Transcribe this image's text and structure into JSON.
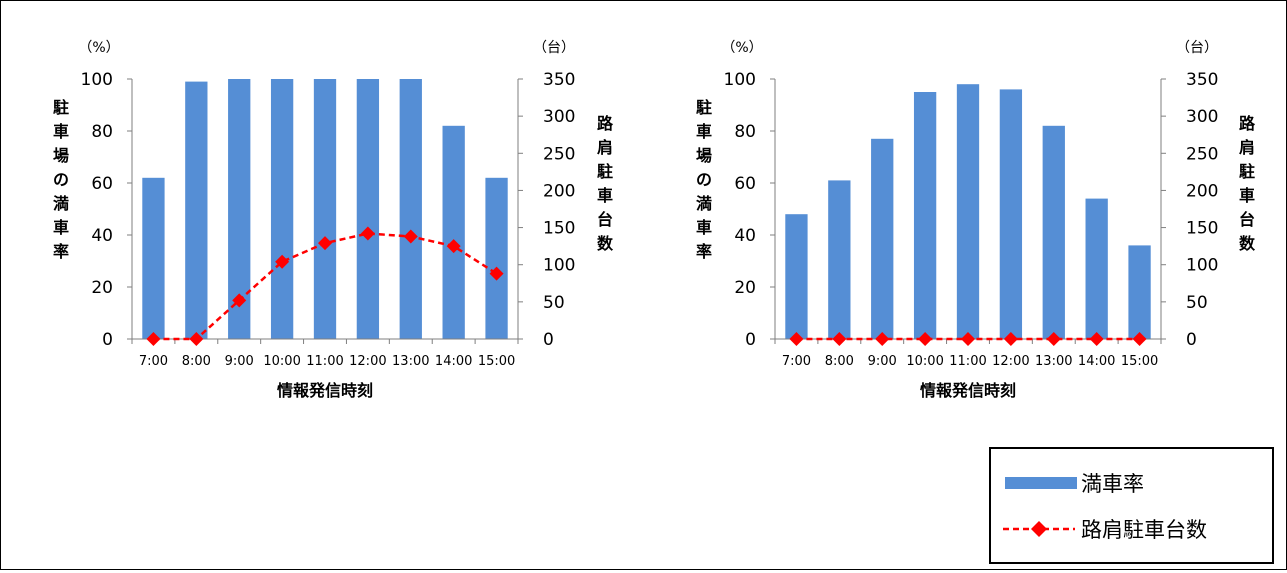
{
  "chart_data": [
    {
      "type": "bar",
      "categories": [
        "7:00",
        "8:00",
        "9:00",
        "10:00",
        "11:00",
        "12:00",
        "13:00",
        "14:00",
        "15:00"
      ],
      "series": [
        {
          "name": "満車率",
          "type": "bar",
          "axis": "left",
          "values": [
            62,
            99,
            100,
            100,
            100,
            100,
            100,
            82,
            62
          ]
        },
        {
          "name": "路肩駐車台数",
          "type": "line",
          "axis": "right",
          "values": [
            0,
            0,
            52,
            104,
            129,
            142,
            138,
            125,
            88
          ]
        }
      ],
      "xlabel": "情報発信時刻",
      "ylabel": "駐車場の満車率",
      "ylabel_right": "路肩駐車台数",
      "y_unit": "（%）",
      "y_unit_right": "（台）",
      "ylim": [
        0,
        100
      ],
      "ylim_right": [
        0,
        350
      ],
      "yticks": [
        "0",
        "20",
        "40",
        "60",
        "80",
        "100"
      ],
      "yticks_right": [
        "0",
        "50",
        "100",
        "150",
        "200",
        "250",
        "300",
        "350"
      ],
      "grid": false
    },
    {
      "type": "bar",
      "categories": [
        "7:00",
        "8:00",
        "9:00",
        "10:00",
        "11:00",
        "12:00",
        "13:00",
        "14:00",
        "15:00"
      ],
      "series": [
        {
          "name": "満車率",
          "type": "bar",
          "axis": "left",
          "values": [
            48,
            61,
            77,
            95,
            98,
            96,
            82,
            54,
            36
          ]
        },
        {
          "name": "路肩駐車台数",
          "type": "line",
          "axis": "right",
          "values": [
            0,
            0,
            0,
            0,
            0,
            0,
            0,
            0,
            0
          ]
        }
      ],
      "xlabel": "情報発信時刻",
      "ylabel": "駐車場の満車率",
      "ylabel_right": "路肩駐車台数",
      "y_unit": "（%）",
      "y_unit_right": "（台）",
      "ylim": [
        0,
        100
      ],
      "ylim_right": [
        0,
        350
      ],
      "yticks": [
        "0",
        "20",
        "40",
        "60",
        "80",
        "100"
      ],
      "yticks_right": [
        "0",
        "50",
        "100",
        "150",
        "200",
        "250",
        "300",
        "350"
      ],
      "grid": false
    }
  ],
  "legend": {
    "placement": "bottom-right",
    "bar_label": "満車率",
    "line_label": "路肩駐車台数"
  },
  "colors": {
    "bar": "#558ED5",
    "line": "#FF0000",
    "marker": "#FF0000",
    "axis": "#7F7F7F"
  }
}
